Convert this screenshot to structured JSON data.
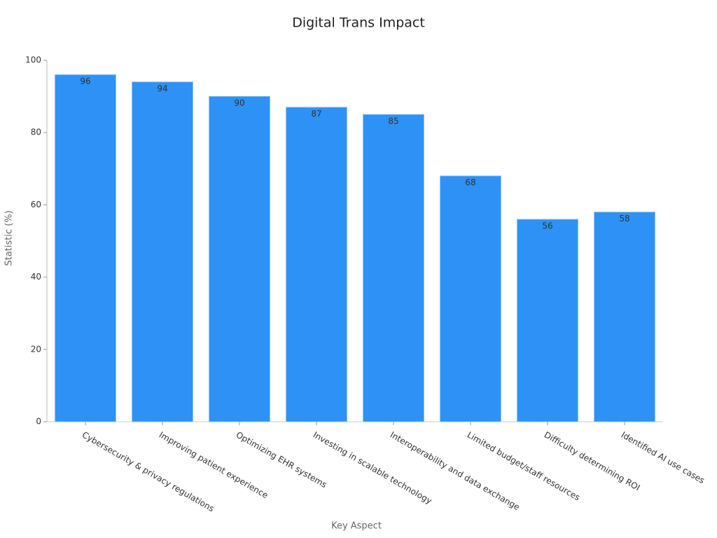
{
  "chart_data": {
    "type": "bar",
    "title": "Digital Trans Impact",
    "x_label": "Key Aspect",
    "y_label": "Statistic (%)",
    "categories": [
      "Cybersecurity & privacy regulations",
      "Improving patient experience",
      "Optimizing EHR systems",
      "Investing in scalable technology",
      "Interoperability and data exchange",
      "Limited budget/staff resources",
      "Difficulty determining ROI",
      "Identified AI use cases"
    ],
    "values": [
      96,
      94,
      90,
      87,
      85,
      68,
      56,
      58
    ],
    "color": "#2d91f5",
    "ylim": [
      0,
      100
    ],
    "yticks": [
      0,
      20,
      40,
      60,
      80,
      100
    ],
    "grid": false
  }
}
